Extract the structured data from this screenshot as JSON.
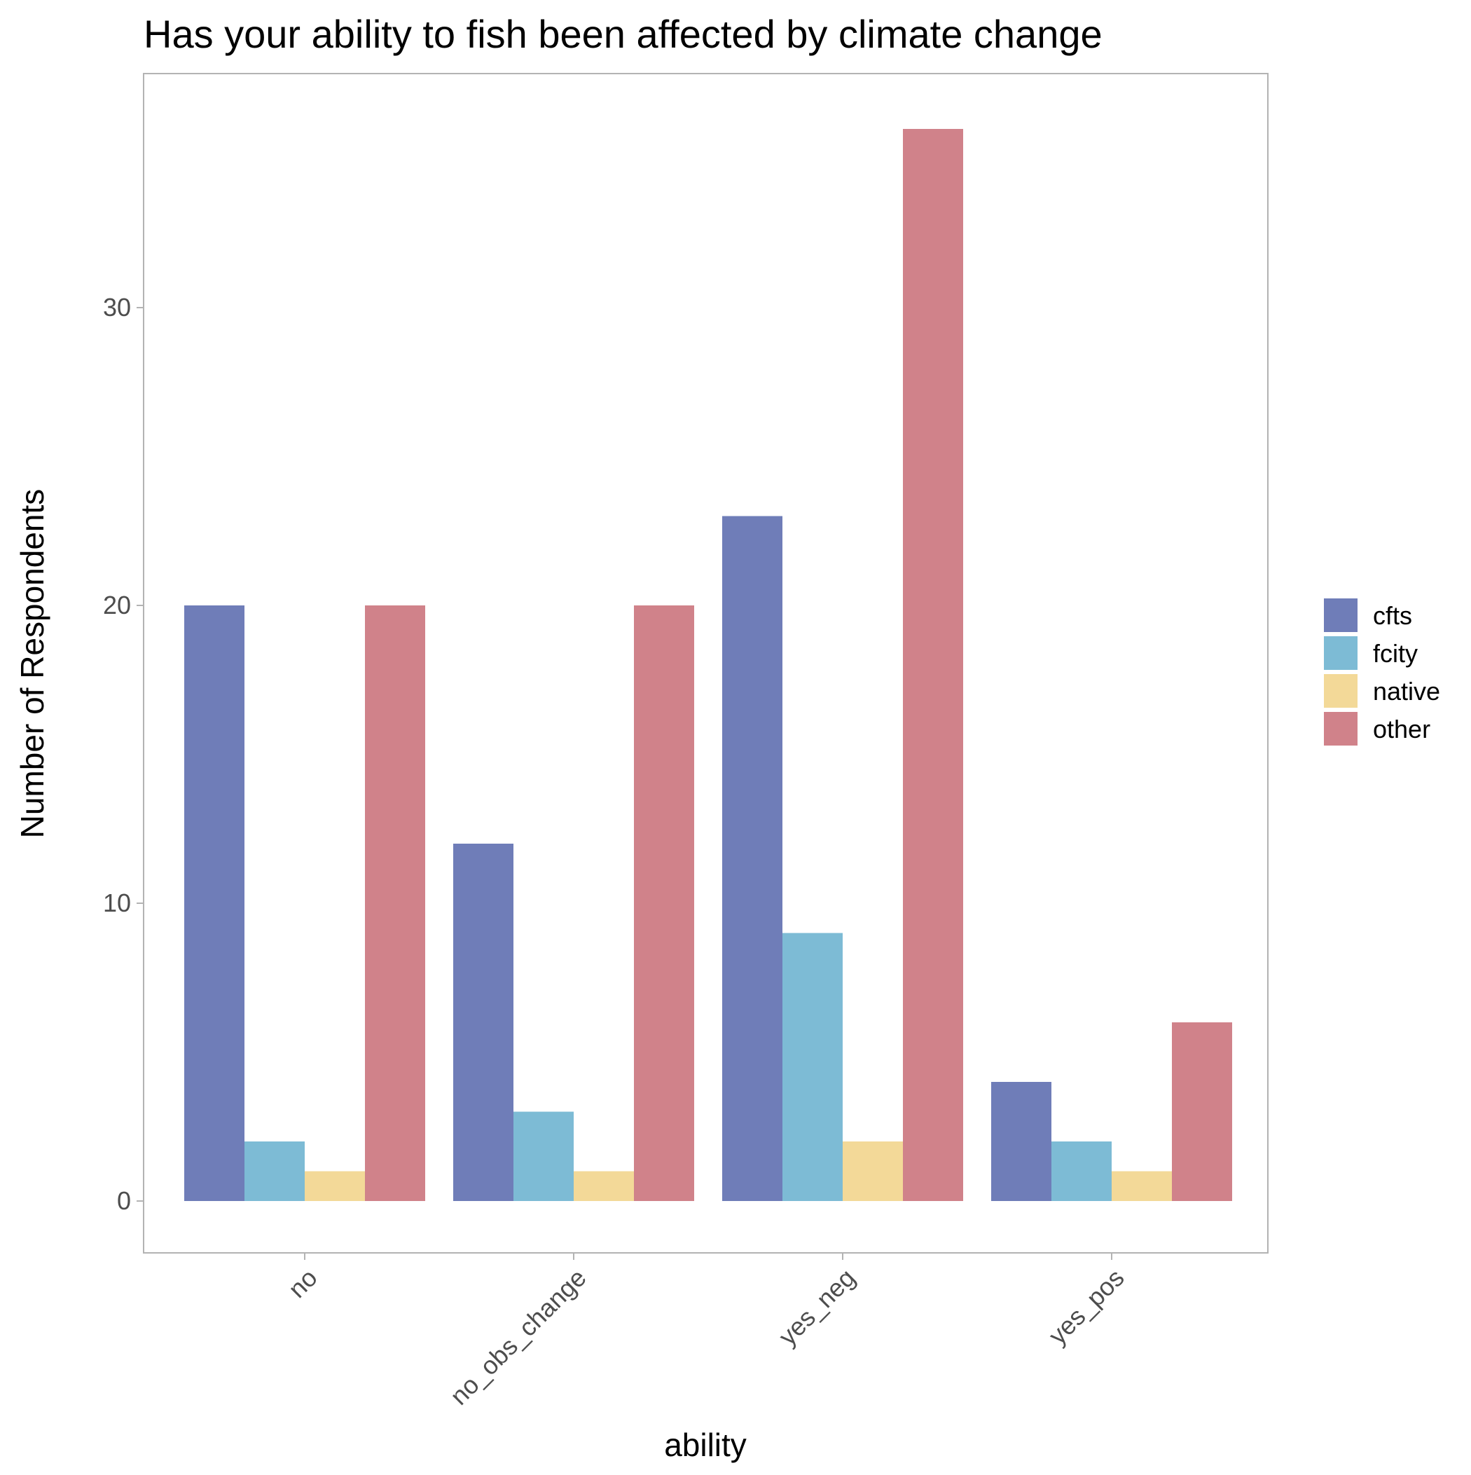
{
  "chart_data": {
    "type": "bar",
    "title": "Has your ability to fish been affected by climate change",
    "xlabel": "ability",
    "ylabel": "Number of Respondents",
    "categories": [
      "no",
      "no_obs_change",
      "yes_neg",
      "yes_pos"
    ],
    "series": [
      {
        "name": "cfts",
        "color": "#6f7db8",
        "values": [
          20,
          12,
          23,
          4
        ]
      },
      {
        "name": "fcity",
        "color": "#7dbbd5",
        "values": [
          2,
          3,
          9,
          2
        ]
      },
      {
        "name": "native",
        "color": "#f3d998",
        "values": [
          1,
          1,
          2,
          1
        ]
      },
      {
        "name": "other",
        "color": "#d0828a",
        "values": [
          20,
          20,
          36,
          6
        ]
      }
    ],
    "yticks": [
      0,
      10,
      20,
      30
    ],
    "ylim": [
      -1.75,
      37.8
    ],
    "grid": false,
    "legend_position": "right",
    "panel_border_color": "#b3b3b3"
  }
}
